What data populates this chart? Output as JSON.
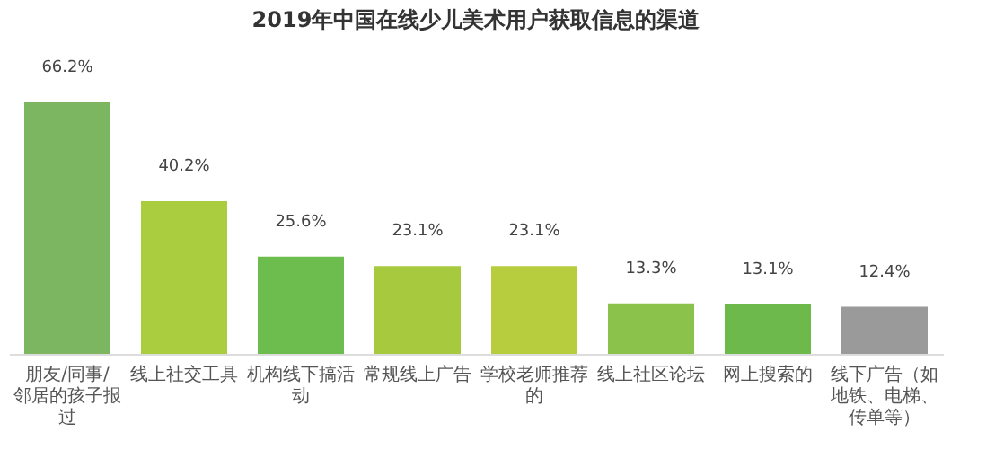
{
  "chart_data": {
    "type": "bar",
    "title": "2019年中国在线少儿美术用户获取信息的渠道",
    "categories": [
      "朋友/同事/邻居的孩子报过",
      "线上社交工具",
      "机构线下搞活动",
      "常规线上广告",
      "学校老师推荐的",
      "线上社区论坛",
      "网上搜索的",
      "线下广告（如地铁、电梯、传单等）"
    ],
    "values": [
      66.2,
      40.2,
      25.6,
      23.1,
      23.1,
      13.3,
      13.1,
      12.4
    ],
    "value_labels": [
      "66.2%",
      "40.2%",
      "25.6%",
      "23.1%",
      "23.1%",
      "13.3%",
      "13.1%",
      "12.4%"
    ],
    "colors": [
      "#7cb661",
      "#a9cd3f",
      "#6cbd4e",
      "#a7c93e",
      "#b7cd3d",
      "#8bc24b",
      "#6db94b",
      "#9a9a9a"
    ],
    "tick_labels": "x",
    "grid": false,
    "legend": false
  }
}
